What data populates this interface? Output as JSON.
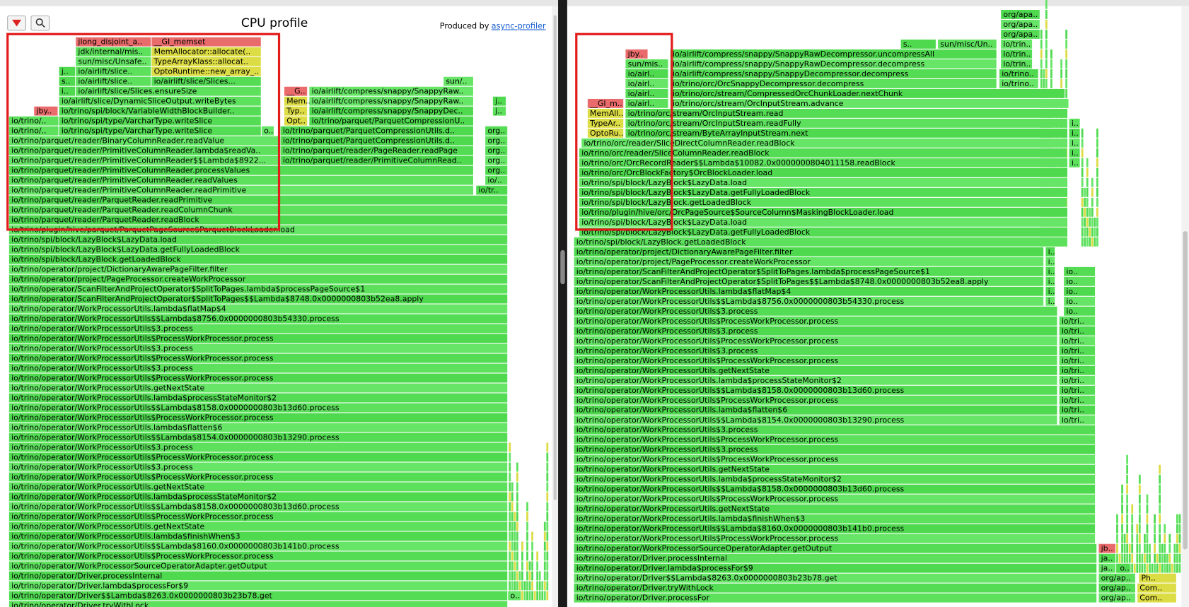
{
  "left": {
    "title": "CPU profile",
    "produced_by": "Produced by",
    "link": "async-profiler",
    "frames": [
      "io/trino/operator/Driver.tryWithLock",
      "io/trino/operator/Driver$$Lambda$8263.0x0000000803b23b78.get",
      "io/trino/operator/Driver.lambda$processFor$9",
      "io/trino/operator/Driver.processInternal",
      "io/trino/operator/WorkProcessorSourceOperatorAdapter.getOutput",
      "io/trino/operator/WorkProcessorUtils$ProcessWorkProcessor.process",
      "io/trino/operator/WorkProcessorUtils$$Lambda$8160.0x0000000803b141b0.process",
      "io/trino/operator/WorkProcessorUtils.lambda$finishWhen$3",
      "io/trino/operator/WorkProcessorUtils.getNextState",
      "io/trino/operator/WorkProcessorUtils$ProcessWorkProcessor.process",
      "io/trino/operator/WorkProcessorUtils$$Lambda$8158.0x0000000803b13d60.process",
      "io/trino/operator/WorkProcessorUtils.lambda$processStateMonitor$2",
      "io/trino/operator/WorkProcessorUtils.getNextState",
      "io/trino/operator/WorkProcessorUtils$ProcessWorkProcessor.process",
      "io/trino/operator/WorkProcessorUtils$3.process",
      "io/trino/operator/WorkProcessorUtils$ProcessWorkProcessor.process",
      "io/trino/operator/WorkProcessorUtils$3.process",
      "io/trino/operator/WorkProcessorUtils$$Lambda$8154.0x0000000803b13290.process",
      "io/trino/operator/WorkProcessorUtils.lambda$flatten$6",
      "io/trino/operator/WorkProcessorUtils$ProcessWorkProcessor.process",
      "io/trino/operator/WorkProcessorUtils$$Lambda$8158.0x0000000803b13d60.process",
      "io/trino/operator/WorkProcessorUtils.lambda$processStateMonitor$2",
      "io/trino/operator/WorkProcessorUtils.getNextState",
      "io/trino/operator/WorkProcessorUtils$ProcessWorkProcessor.process",
      "io/trino/operator/WorkProcessorUtils$3.process",
      "io/trino/operator/WorkProcessorUtils$ProcessWorkProcessor.process",
      "io/trino/operator/WorkProcessorUtils$3.process",
      "io/trino/operator/WorkProcessorUtils$ProcessWorkProcessor.process",
      "io/trino/operator/WorkProcessorUtils$3.process",
      "io/trino/operator/WorkProcessorUtils$$Lambda$8756.0x0000000803b54330.process",
      "io/trino/operator/WorkProcessorUtils.lambda$flatMap$4",
      "io/trino/operator/ScanFilterAndProjectOperator$SplitToPages$$Lambda$8748.0x0000000803b52ea8.apply",
      "io/trino/operator/ScanFilterAndProjectOperator$SplitToPages.lambda$processPageSource$1",
      "io/trino/operator/project/PageProcessor.createWorkProcessor",
      "io/trino/operator/project/DictionaryAwarePageFilter.filter",
      "io/trino/spi/block/LazyBlock.getLoadedBlock",
      "io/trino/spi/block/LazyBlock$LazyData.getFullyLoadedBlock",
      "io/trino/spi/block/LazyBlock$LazyData.load",
      "io/trino/plugin/hive/parquet/ParquetPageSource$ParquetBlockLoader.load",
      "io/trino/parquet/reader/ParquetReader.readBlock",
      "io/trino/parquet/reader/ParquetReader.readColumnChunk",
      "io/trino/parquet/reader/ParquetReader.readPrimitive",
      "io/trino/parquet/reader/PrimitiveColumnReader.readPrimitive",
      "io/tr..",
      "io/trino/parquet/reader/PrimitiveColumnReader.readValues",
      "io/trino/parquet/reader/PrimitiveColumnReader.processValues",
      "io/trino/parquet/reader/PrimitiveColumnReader$$Lambda$8922...",
      "io/trino/parquet/reader/PrimitiveColumnRead..",
      "io/trino/parquet/reader/PrimitiveColumnReader.lambda$readVa..",
      "io/trino/parquet/reader/PageReader.readPage",
      "io/trino/parquet/reader/BinaryColumnReader.readValue",
      "io/trino/parquet/ParquetCompressionUtils.d..",
      "io/trino/..",
      "io/trino/spi/type/VarcharType.writeSlice",
      "o..",
      "io/trino/parquet/ParquetCompressionUtils.d..",
      "io/trino/..",
      "io/trino/spi/type/VarcharType.writeSlice",
      "Opt..",
      "io/trino/parquet/ParquetCompressionU..",
      "jby..",
      "io/trino/spi/block/VariableWidthBlockBuilder..",
      "Typ..",
      "io/airlift/compress/snappy/SnappyDec..",
      "io/airlift/slice/DynamicSliceOutput.writeBytes",
      "Mem..",
      "io/airlift/compress/snappy/SnappyRaw..",
      "i..",
      "io/airlift/slice/Slices.ensureSize",
      "__G..",
      "io/airlift/compress/snappy/SnappyRaw..",
      "s..",
      "io/airlift/slice..",
      "io/airlift/slice/Slices...",
      "sun/..",
      "j..",
      "io/airlift/slice..",
      "OptoRuntime::new_array_..",
      "sun/misc/Unsafe..",
      "TypeArrayKlass::allocat..",
      "jdk/internal/mis..",
      "MemAllocator::allocate(..",
      "jlong_disjoint_a..",
      "__GI_memset",
      "org..",
      "org..",
      "org..",
      "org..",
      "io/..",
      "org..",
      "o..",
      "j..",
      "j.."
    ]
  },
  "right": {
    "frames": [
      "io/trino/operator/Driver.processFor",
      "io/trino/operator/Driver.tryWithLock",
      "io/trino/operator/Driver$$Lambda$8263.0x0000000803b23b78.get",
      "io/trino/operator/Driver.lambda$processFor$9",
      "io/trino/operator/Driver.processInternal",
      "io/trino/operator/WorkProcessorSourceOperatorAdapter.getOutput",
      "io/trino/operator/WorkProcessorUtils$ProcessWorkProcessor.process",
      "io/trino/operator/WorkProcessorUtils$$Lambda$8160.0x0000000803b141b0.process",
      "io/trino/operator/WorkProcessorUtils.lambda$finishWhen$3",
      "io/trino/operator/WorkProcessorUtils.getNextState",
      "io/trino/operator/WorkProcessorUtils$ProcessWorkProcessor.process",
      "io/trino/operator/WorkProcessorUtils$$Lambda$8158.0x0000000803b13d60.process",
      "io/trino/operator/WorkProcessorUtils.lambda$processStateMonitor$2",
      "io/trino/operator/WorkProcessorUtils.getNextState",
      "io/trino/operator/WorkProcessorUtils$ProcessWorkProcessor.process",
      "io/trino/operator/WorkProcessorUtils$3.process",
      "io/trino/operator/WorkProcessorUtils$ProcessWorkProcessor.process",
      "io/trino/operator/WorkProcessorUtils$3.process",
      "io/trino/operator/WorkProcessorUtils$$Lambda$8154.0x0000000803b13290.process",
      "io/trino/operator/WorkProcessorUtils.lambda$flatten$6",
      "io/trino/operator/WorkProcessorUtils$ProcessWorkProcessor.process",
      "io/trino/operator/WorkProcessorUtils$$Lambda$8158.0x0000000803b13d60.process",
      "io/trino/operator/WorkProcessorUtils.lambda$processStateMonitor$2",
      "io/trino/operator/WorkProcessorUtils.getNextState",
      "io/trino/operator/WorkProcessorUtils$ProcessWorkProcessor.process",
      "io/trino/operator/WorkProcessorUtils$3.process",
      "io/trino/operator/WorkProcessorUtils$ProcessWorkProcessor.process",
      "io/trino/operator/WorkProcessorUtils$3.process",
      "io/trino/operator/WorkProcessorUtils$ProcessWorkProcessor.process",
      "io/trino/operator/WorkProcessorUtils$3.process",
      "io/trino/operator/WorkProcessorUtils$$Lambda$8756.0x0000000803b54330.process",
      "io/trino/operator/WorkProcessorUtils.lambda$flatMap$4",
      "io/trino/operator/ScanFilterAndProjectOperator$SplitToPages$$Lambda$8748.0x0000000803b52ea8.apply",
      "io/trino/operator/ScanFilterAndProjectOperator$SplitToPages.lambda$processPageSource$1",
      "io/trino/operator/project/PageProcessor.createWorkProcessor",
      "io/trino/operator/project/DictionaryAwarePageFilter.filter",
      "io/trino/spi/block/LazyBlock.getLoadedBlock",
      "io/trino/spi/block/LazyBlock$LazyData.getFullyLoadedBlock",
      "io/trino/spi/block/LazyBlock$LazyData.load",
      "io/trino/plugin/hive/orc/OrcPageSource$SourceColumn$MaskingBlockLoader.load",
      "io/trino/spi/block/LazyBlock.getLoadedBlock",
      "io/trino/spi/block/LazyBlock$LazyData.getFullyLoadedBlock",
      "io/trino/spi/block/LazyBlock$LazyData.load",
      "io/trino/orc/OrcBlockFactory$OrcBlockLoader.load",
      "io/trino/orc/OrcRecordReader$$Lambda$10082.0x0000000804011158.readBlock",
      "io/trino/orc/reader/SliceColumnReader.readBlock",
      "io/trino/orc/reader/SliceDirectColumnReader.readBlock",
      "io/trino/orc/stream/ByteArrayInputStream.next",
      "io/trino/orc/stream/OrcInputStream.readFully",
      "io/trino/orc/stream/OrcInputStream.read",
      "io/trino/orc/stream/OrcInputStream.advance",
      "io/trino/orc/stream/CompressedOrcChunkLoader.nextChunk",
      "io/trino/orc/OrcSnappyDecompressor.decompress",
      "io/airlift/compress/snappy/SnappyDecompressor.decompress",
      "io/airlift/compress/snappy/SnappyRawDecompressor.decompress",
      "io/airlift/compress/snappy/SnappyRawDecompressor.uncompressAll",
      "jb..",
      "ja..",
      "ja..",
      "o..",
      "org/ap..",
      "org/ap..",
      "org/ap..",
      "Ph..",
      "Com..",
      "Com..",
      "io/tri..",
      "io/tri..",
      "io/tri..",
      "io/tri..",
      "io/tri..",
      "io/tri..",
      "io/tri..",
      "io/tri..",
      "io/tri..",
      "io/tri..",
      "io/tri..",
      "io..",
      "io..",
      "io..",
      "io..",
      "io..",
      "i..",
      "i..",
      "i..",
      "i..",
      "i..",
      "i..",
      "__GI_m..",
      "MemAll..",
      "TypeAr..",
      "OptoRu..",
      "io/airl..",
      "io/airl..",
      "io/airl..",
      "io/airl..",
      "sun/mis..",
      "jby..",
      "io/trino..",
      "io/trino..",
      "io/trin..",
      "io/trin..",
      "io/trin..",
      "s..",
      "sun/misc/Un..",
      "org/apa..",
      "org/apa..",
      "org/apa..",
      "i..",
      "i..",
      "i..",
      "i..",
      "i.."
    ]
  }
}
